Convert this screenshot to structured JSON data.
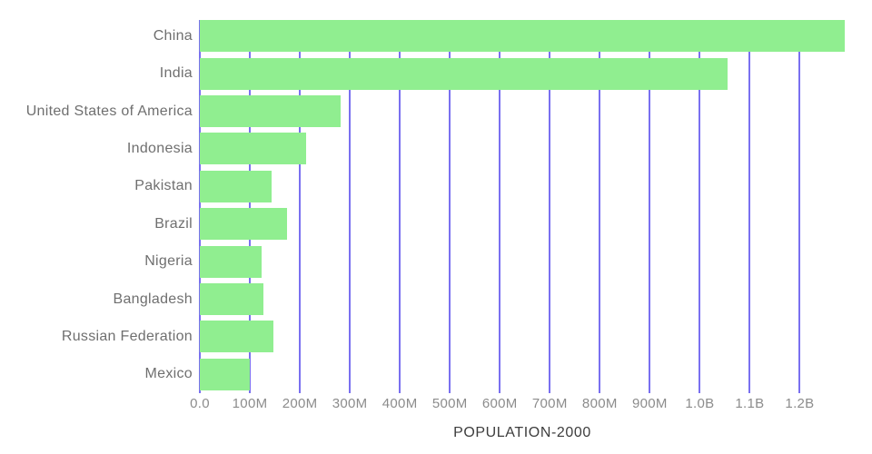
{
  "chart_data": {
    "type": "bar",
    "orientation": "horizontal",
    "title": "POPULATION-2000",
    "categories": [
      "China",
      "India",
      "United States of America",
      "Indonesia",
      "Pakistan",
      "Brazil",
      "Nigeria",
      "Bangladesh",
      "Russian Federation",
      "Mexico"
    ],
    "values_millions": [
      1290,
      1056,
      282,
      212,
      143,
      175,
      123,
      128,
      147,
      100
    ],
    "xlim_millions": [
      0,
      1290
    ],
    "x_ticks": [
      {
        "value_millions": 0,
        "label": "0.0"
      },
      {
        "value_millions": 100,
        "label": "100M"
      },
      {
        "value_millions": 200,
        "label": "200M"
      },
      {
        "value_millions": 300,
        "label": "300M"
      },
      {
        "value_millions": 400,
        "label": "400M"
      },
      {
        "value_millions": 500,
        "label": "500M"
      },
      {
        "value_millions": 600,
        "label": "600M"
      },
      {
        "value_millions": 700,
        "label": "700M"
      },
      {
        "value_millions": 800,
        "label": "800M"
      },
      {
        "value_millions": 900,
        "label": "900M"
      },
      {
        "value_millions": 1000,
        "label": "1.0B"
      },
      {
        "value_millions": 1100,
        "label": "1.1B"
      },
      {
        "value_millions": 1200,
        "label": "1.2B"
      }
    ],
    "grid": true,
    "legend": "none",
    "colors": {
      "bar": "#90ee90",
      "gridline": "#7a70f0",
      "category_label": "#6f6f6f",
      "tick_label": "#8c8c8c",
      "title": "#3d3d3d",
      "background": "#ffffff"
    }
  }
}
